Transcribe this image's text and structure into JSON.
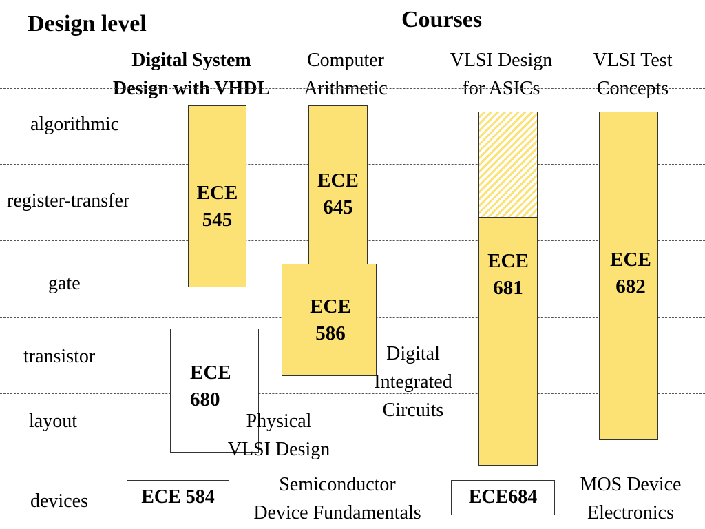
{
  "header": {
    "design_level": "Design level",
    "courses": "Courses"
  },
  "levels": [
    "algorithmic",
    "register-transfer",
    "gate",
    "transistor",
    "layout",
    "devices"
  ],
  "course_titles": [
    {
      "line1": "Digital System",
      "line2": "Design with VHDL"
    },
    {
      "line1": "Computer",
      "line2": "Arithmetic"
    },
    {
      "line1": "VLSI Design",
      "line2": "for ASICs"
    },
    {
      "line1": "VLSI Test",
      "line2": "Concepts"
    }
  ],
  "courses": {
    "ece545": {
      "line1": "ECE",
      "line2": "545"
    },
    "ece645": {
      "line1": "ECE",
      "line2": "645"
    },
    "ece586": {
      "line1": "ECE",
      "line2": "586"
    },
    "ece680": {
      "line1": "ECE",
      "line2": "680"
    },
    "ece681": {
      "line1": "ECE",
      "line2": "681"
    },
    "ece682": {
      "line1": "ECE",
      "line2": "682"
    },
    "ece584": "ECE 584",
    "ece684": "ECE684"
  },
  "notes": {
    "dic": {
      "line1": "Digital",
      "line2": "Integrated",
      "line3": "Circuits"
    },
    "pvd": {
      "line1": "Physical",
      "line2": "VLSI Design"
    },
    "sdf": {
      "line1": "Semiconductor",
      "line2": "Device Fundamentals"
    },
    "mde": {
      "line1": "MOS Device",
      "line2": "Electronics"
    }
  },
  "colors": {
    "fill": "#FCE275",
    "line": "#555555"
  }
}
